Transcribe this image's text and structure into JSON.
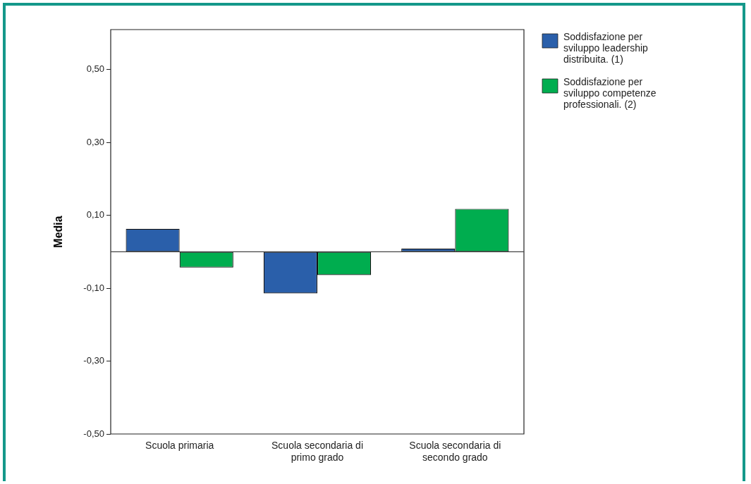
{
  "chart_data": {
    "type": "bar",
    "ylabel": "Media",
    "categories": [
      "Scuola primaria",
      "Scuola secondaria di primo grado",
      "Scuola secondaria di secondo grado"
    ],
    "series": [
      {
        "name": "Soddisfazione per sviluppo leadership distribuita. (1)",
        "color": "#2a5faa",
        "values": [
          0.063,
          -0.114,
          0.009
        ]
      },
      {
        "name": "Soddisfazione per sviluppo competenze professionali. (2)",
        "color": "#00ad4f",
        "values": [
          -0.043,
          -0.064,
          0.118
        ]
      }
    ],
    "ylim": [
      -0.5,
      0.61
    ],
    "yticks": [
      {
        "value": -0.5,
        "label": "-0,50"
      },
      {
        "value": -0.3,
        "label": "-0,30"
      },
      {
        "value": -0.1,
        "label": "-0,10"
      },
      {
        "value": 0.1,
        "label": "0,10"
      },
      {
        "value": 0.3,
        "label": "0,30"
      },
      {
        "value": 0.5,
        "label": "0,50"
      }
    ],
    "grid": false,
    "legend": "right"
  }
}
